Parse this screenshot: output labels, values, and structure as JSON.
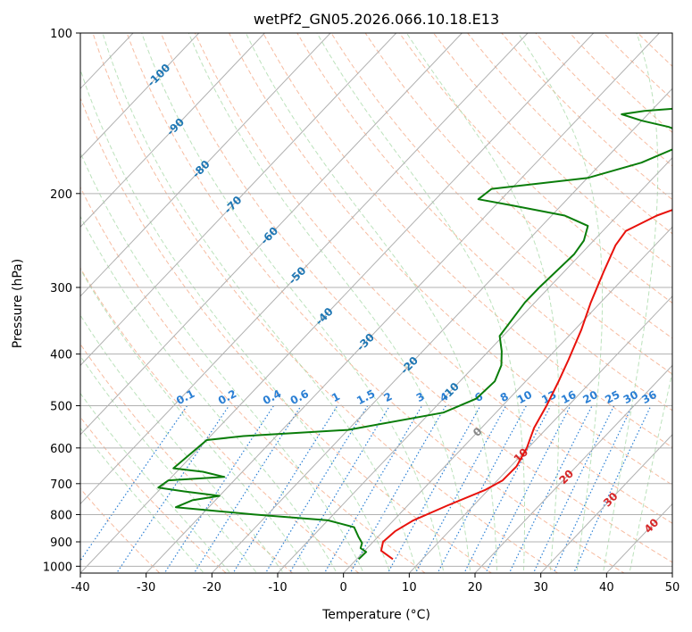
{
  "chart_data": {
    "type": "line",
    "title": "wetPf2_GN05.2026.066.10.18.E13",
    "xlabel": "Temperature (°C)",
    "ylabel": "Pressure (hPa)",
    "xlim": [
      -40,
      50
    ],
    "ylim": [
      1030,
      100
    ],
    "yscale": "log",
    "grid": true,
    "x_ticks": [
      -40,
      -30,
      -20,
      -10,
      0,
      10,
      20,
      30,
      40,
      50
    ],
    "y_ticks": [
      100,
      200,
      300,
      400,
      500,
      600,
      700,
      800,
      900,
      1000
    ],
    "colors": {
      "temperature": "#e8120c",
      "dewpoint": "#0a7d0a",
      "grid": "#b0b0b0",
      "dry_adiabats": "#f4a582",
      "moist_adiabats": "#a6d8a6",
      "mixing_ratio": "#2a7fd4",
      "label_blue": "#1f77b4",
      "label_red": "#d62728"
    },
    "series": [
      {
        "name": "",
        "role": "temperature",
        "points": [
          [
            5.5,
            970
          ],
          [
            2.5,
            935
          ],
          [
            1.5,
            900
          ],
          [
            1.8,
            860
          ],
          [
            3.0,
            820
          ],
          [
            6.0,
            770
          ],
          [
            9.5,
            720
          ],
          [
            10.8,
            690
          ],
          [
            10.9,
            650
          ],
          [
            9.8,
            600
          ],
          [
            8.0,
            550
          ],
          [
            6.7,
            500
          ],
          [
            5.0,
            450
          ],
          [
            3.4,
            410
          ],
          [
            1.0,
            360
          ],
          [
            -1.5,
            320
          ],
          [
            -4.0,
            280
          ],
          [
            -6.0,
            250
          ],
          [
            -6.5,
            235
          ],
          [
            -4.0,
            220
          ],
          [
            0.5,
            205
          ],
          [
            3.5,
            190
          ],
          [
            7.0,
            170
          ],
          [
            11.0,
            155
          ],
          [
            14.8,
            140
          ],
          [
            16.5,
            125
          ],
          [
            18.5,
            115
          ],
          [
            21.5,
            107
          ],
          [
            22.0,
            100
          ]
        ]
      },
      {
        "name": "",
        "role": "dewpoint",
        "points": [
          [
            0.3,
            970
          ],
          [
            0.4,
            940
          ],
          [
            -1.0,
            925
          ],
          [
            -1.5,
            905
          ],
          [
            -3.0,
            880
          ],
          [
            -5.0,
            845
          ],
          [
            -10.0,
            820
          ],
          [
            -22.0,
            800
          ],
          [
            -35.0,
            775
          ],
          [
            -33.5,
            752
          ],
          [
            -30.0,
            738
          ],
          [
            -36.0,
            724
          ],
          [
            -40.5,
            712
          ],
          [
            -40.0,
            690
          ],
          [
            -32.0,
            680
          ],
          [
            -36.0,
            665
          ],
          [
            -41.0,
            655
          ],
          [
            -40.0,
            580
          ],
          [
            -35.0,
            570
          ],
          [
            -20.0,
            555
          ],
          [
            -8.0,
            515
          ],
          [
            -5.0,
            485
          ],
          [
            -4.7,
            450
          ],
          [
            -6.0,
            420
          ],
          [
            -8.0,
            395
          ],
          [
            -10.5,
            370
          ],
          [
            -11.0,
            345
          ],
          [
            -11.5,
            320
          ],
          [
            -11.5,
            300
          ],
          [
            -11.0,
            260
          ],
          [
            -11.5,
            245
          ],
          [
            -13.0,
            230
          ],
          [
            -18.0,
            220
          ],
          [
            -28.0,
            210
          ],
          [
            -33.5,
            205
          ],
          [
            -33.0,
            196
          ],
          [
            -20.0,
            187
          ],
          [
            -14.0,
            175
          ],
          [
            -10.5,
            163
          ],
          [
            -11.0,
            155
          ],
          [
            -15.0,
            150
          ],
          [
            -20.0,
            146
          ],
          [
            -24.0,
            142
          ],
          [
            -21.0,
            140
          ],
          [
            -15.0,
            138
          ],
          [
            -8.0,
            130
          ],
          [
            -4.0,
            120
          ],
          [
            -2.5,
            112
          ],
          [
            -1.5,
            106
          ],
          [
            -1.0,
            100
          ]
        ]
      }
    ],
    "isotherm_labels": [
      -100,
      -90,
      -80,
      -70,
      -60,
      -50,
      -40,
      -30,
      -20,
      -10
    ],
    "dry_adiabat_labels": [
      0,
      10,
      20,
      30,
      40
    ],
    "mixing_ratio_labels": [
      "0.1",
      "0.2",
      "0.4",
      "0.6",
      "1",
      "1.5",
      "2",
      "3",
      "4",
      "6",
      "8",
      "10",
      "13",
      "16",
      "20",
      "25",
      "30",
      "36"
    ]
  }
}
